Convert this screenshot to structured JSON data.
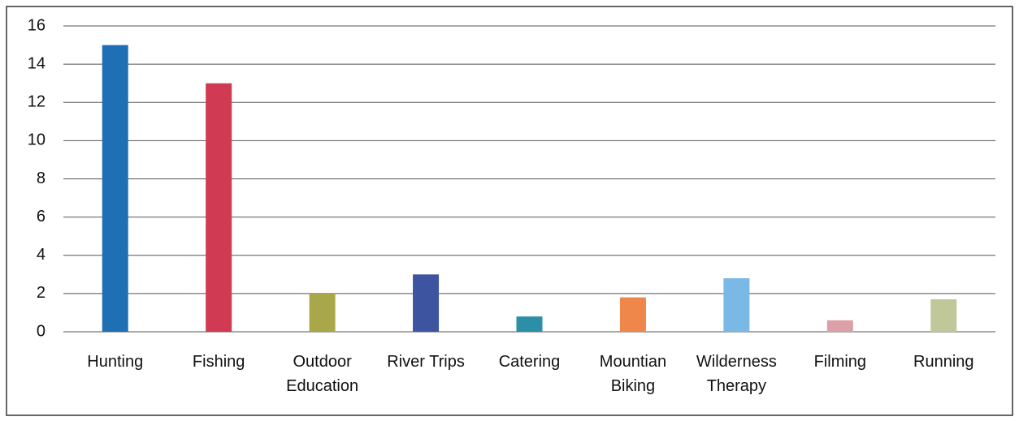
{
  "chart_data": {
    "type": "bar",
    "categories": [
      "Hunting",
      "Fishing",
      "Outdoor Education",
      "River Trips",
      "Catering",
      "Mountian Biking",
      "Wilderness Therapy",
      "Filming",
      "Running"
    ],
    "values": [
      15,
      13,
      2,
      3,
      0.8,
      1.8,
      2.8,
      0.6,
      1.7
    ],
    "colors": [
      "#1f6fb5",
      "#d03a52",
      "#a8a84a",
      "#3d55a0",
      "#2b8fa8",
      "#f0874a",
      "#7ab8e6",
      "#dca0a8",
      "#c0c89a"
    ],
    "ylim": [
      0,
      16
    ],
    "yticks": [
      0,
      2,
      4,
      6,
      8,
      10,
      12,
      14,
      16
    ],
    "grid": true
  }
}
